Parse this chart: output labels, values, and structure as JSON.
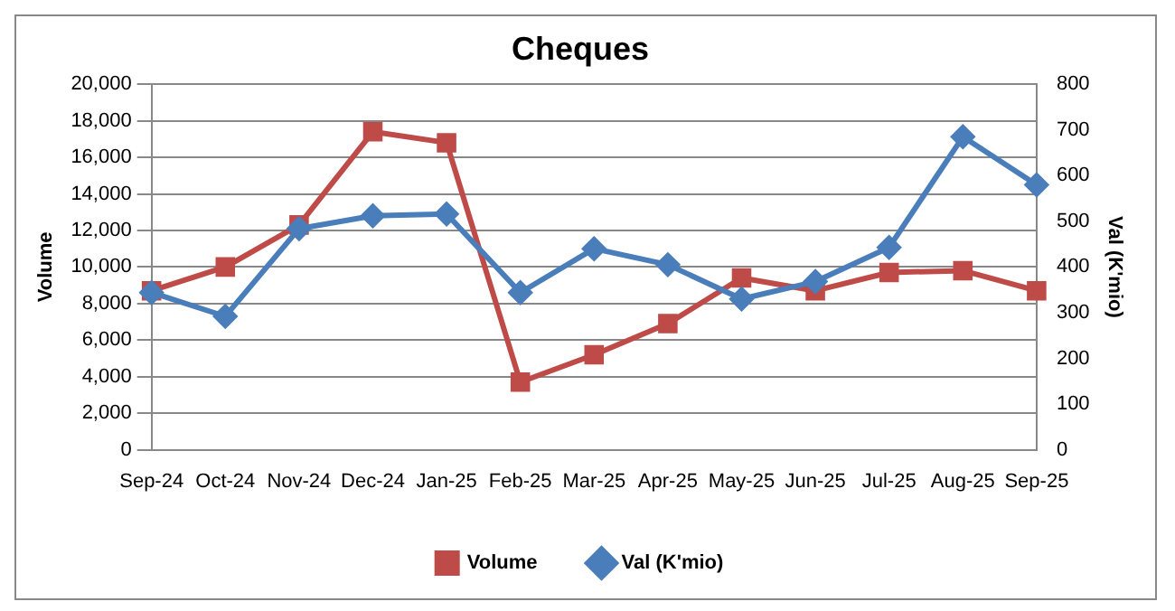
{
  "chart_data": {
    "type": "line",
    "title": "Cheques",
    "ylabel": "Volume",
    "y2label": "Val (K'mio)",
    "categories": [
      "Sep-24",
      "Oct-24",
      "Nov-24",
      "Dec-24",
      "Jan-25",
      "Feb-25",
      "Mar-25",
      "Apr-25",
      "May-25",
      "Jun-25",
      "Jul-25",
      "Aug-25",
      "Sep-25"
    ],
    "series": [
      {
        "name": "Volume",
        "color": "#be4b48",
        "marker": "square",
        "values": [
          8700,
          10000,
          12300,
          17400,
          16800,
          3700,
          5200,
          6900,
          9400,
          8700,
          9700,
          9800,
          8700
        ]
      },
      {
        "name": "Val (K'mio)",
        "color": "#4a7ebb",
        "marker": "diamond",
        "axis": "y2",
        "values": [
          344,
          292,
          484,
          512,
          516,
          344,
          440,
          405,
          330,
          368,
          443,
          685,
          580
        ]
      }
    ],
    "ylim": [
      0,
      20000
    ],
    "yticks": [
      0,
      {
        "value": 2000,
        "label": "2,000"
      },
      {
        "value": 4000,
        "label": "4,000"
      },
      {
        "value": 6000,
        "label": "6,000"
      },
      {
        "value": 8000,
        "label": "8,000"
      },
      {
        "value": 10000,
        "label": "10,000"
      },
      {
        "value": 12000,
        "label": "12,000"
      },
      {
        "value": 14000,
        "label": "14,000"
      },
      {
        "value": 16000,
        "label": "16,000"
      },
      {
        "value": 18000,
        "label": "18,000"
      },
      {
        "value": 20000,
        "label": "20,000"
      }
    ],
    "y2lim": [
      0,
      800
    ],
    "y2ticks": [
      0,
      100,
      200,
      300,
      400,
      500,
      600,
      700,
      800
    ],
    "grid": "y",
    "legend": "bottom",
    "line_style": "solid"
  }
}
